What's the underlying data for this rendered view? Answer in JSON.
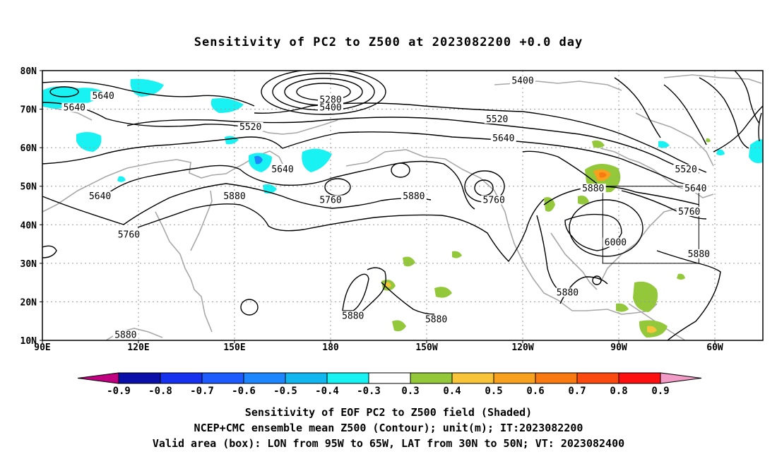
{
  "title": "Sensitivity of PC2 to Z500 at 2023082200 +0.0 day",
  "map": {
    "lat_labels": [
      "80N",
      "70N",
      "60N",
      "50N",
      "40N",
      "30N",
      "20N",
      "10N"
    ],
    "lon_labels": [
      "90E",
      "120E",
      "150E",
      "180",
      "150W",
      "120W",
      "90W",
      "60W"
    ],
    "contour_labels": [
      {
        "text": "5640",
        "lon": 109,
        "lat": 73
      },
      {
        "text": "5640",
        "lon": 100,
        "lat": 70
      },
      {
        "text": "5640",
        "lon": 108,
        "lat": 47
      },
      {
        "text": "5760",
        "lon": 117,
        "lat": 37
      },
      {
        "text": "5880",
        "lon": 116,
        "lat": 11
      },
      {
        "text": "5880",
        "lon": 150,
        "lat": 47
      },
      {
        "text": "5640",
        "lon": 165,
        "lat": 54
      },
      {
        "text": "5760",
        "lon": 180,
        "lat": 46
      },
      {
        "text": "5520",
        "lon": 155,
        "lat": 65
      },
      {
        "text": "5280",
        "lon": 180,
        "lat": 72
      },
      {
        "text": "5400",
        "lon": 180,
        "lat": 70
      },
      {
        "text": "5880",
        "lon": 206,
        "lat": 47
      },
      {
        "text": "5880",
        "lon": 187,
        "lat": 16
      },
      {
        "text": "5880",
        "lon": 213,
        "lat": 15
      },
      {
        "text": "5760",
        "lon": 231,
        "lat": 46
      },
      {
        "text": "5400",
        "lon": 240,
        "lat": 77
      },
      {
        "text": "5520",
        "lon": 232,
        "lat": 67
      },
      {
        "text": "5640",
        "lon": 234,
        "lat": 62
      },
      {
        "text": "5880",
        "lon": 262,
        "lat": 49
      },
      {
        "text": "6000",
        "lon": 269,
        "lat": 35
      },
      {
        "text": "5880",
        "lon": 254,
        "lat": 22
      },
      {
        "text": "5880",
        "lon": 295,
        "lat": 32
      },
      {
        "text": "5520",
        "lon": 291,
        "lat": 54
      },
      {
        "text": "5640",
        "lon": 294,
        "lat": 49
      },
      {
        "text": "5760",
        "lon": 292,
        "lat": 43
      }
    ],
    "valid_box": {
      "lon_min": -95,
      "lon_max": -65,
      "lat_min": 30,
      "lat_max": 50
    }
  },
  "colorbar": {
    "labels": [
      "-0.9",
      "-0.8",
      "-0.7",
      "-0.6",
      "-0.5",
      "-0.4",
      "-0.3",
      "0.3",
      "0.4",
      "0.5",
      "0.6",
      "0.7",
      "0.8",
      "0.9"
    ],
    "colors": [
      "#0a10a8",
      "#1732ee",
      "#1f5cff",
      "#1e86ff",
      "#12b7ef",
      "#18f2f2",
      "#ffffff",
      "#92c83a",
      "#f7c43a",
      "#f7a11e",
      "#f97a10",
      "#fb4a10",
      "#ff1010"
    ],
    "low_arrow_color": "#c00080",
    "high_arrow_color": "#f29bc6"
  },
  "captions": {
    "line1": "Sensitivity of EOF PC2 to Z500 field (Shaded)",
    "line2": "NCEP+CMC ensemble mean Z500 (Contour); unit(m); IT:2023082200",
    "line3": "Valid area (box): LON from 95W to 65W, LAT from 30N to 50N; VT: 2023082400"
  }
}
